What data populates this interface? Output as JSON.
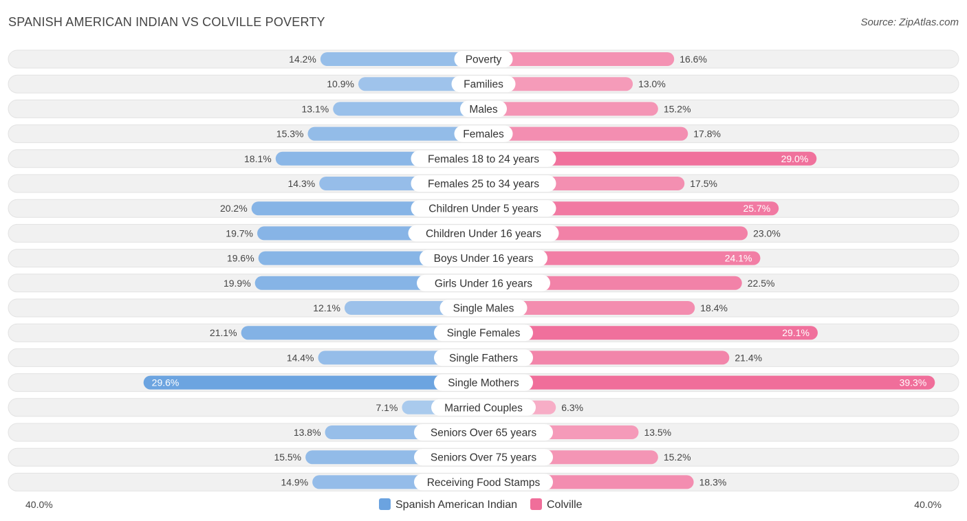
{
  "title": "SPANISH AMERICAN INDIAN VS COLVILLE POVERTY",
  "source": "Source: ZipAtlas.com",
  "chart_data": {
    "type": "bar",
    "orientation": "horizontal-diverging",
    "title": "SPANISH AMERICAN INDIAN VS COLVILLE POVERTY",
    "axis_max": 40.0,
    "axis_left_label": "40.0%",
    "axis_right_label": "40.0%",
    "categories": [
      "Poverty",
      "Families",
      "Males",
      "Females",
      "Females 18 to 24 years",
      "Females 25 to 34 years",
      "Children Under 5 years",
      "Children Under 16 years",
      "Boys Under 16 years",
      "Girls Under 16 years",
      "Single Males",
      "Single Females",
      "Single Fathers",
      "Single Mothers",
      "Married Couples",
      "Seniors Over 65 years",
      "Seniors Over 75 years",
      "Receiving Food Stamps"
    ],
    "series": [
      {
        "name": "Spanish American Indian",
        "color": "#6ba3e0",
        "values": [
          14.2,
          10.9,
          13.1,
          15.3,
          18.1,
          14.3,
          20.2,
          19.7,
          19.6,
          19.9,
          12.1,
          21.1,
          14.4,
          29.6,
          7.1,
          13.8,
          15.5,
          14.9
        ],
        "labels": [
          "14.2%",
          "10.9%",
          "13.1%",
          "15.3%",
          "18.1%",
          "14.3%",
          "20.2%",
          "19.7%",
          "19.6%",
          "19.9%",
          "12.1%",
          "21.1%",
          "14.4%",
          "29.6%",
          "7.1%",
          "13.8%",
          "15.5%",
          "14.9%"
        ]
      },
      {
        "name": "Colville",
        "color": "#f06e9a",
        "values": [
          16.6,
          13.0,
          15.2,
          17.8,
          29.0,
          17.5,
          25.7,
          23.0,
          24.1,
          22.5,
          18.4,
          29.1,
          21.4,
          39.3,
          6.3,
          13.5,
          15.2,
          18.3
        ],
        "labels": [
          "16.6%",
          "13.0%",
          "15.2%",
          "17.8%",
          "29.0%",
          "17.5%",
          "25.7%",
          "23.0%",
          "24.1%",
          "22.5%",
          "18.4%",
          "29.1%",
          "21.4%",
          "39.3%",
          "6.3%",
          "13.5%",
          "15.2%",
          "18.3%"
        ]
      }
    ],
    "legend": [
      "Spanish American Indian",
      "Colville"
    ],
    "legend_position": "bottom-center"
  }
}
